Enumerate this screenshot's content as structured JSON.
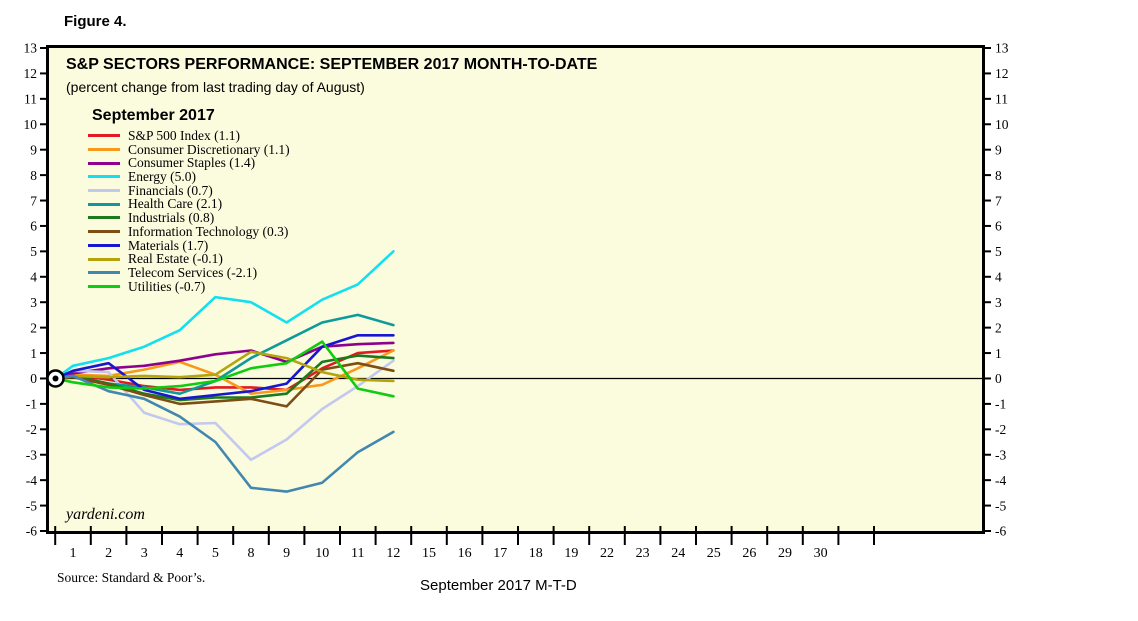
{
  "figure_label": "Figure 4.",
  "chart": {
    "title": "S&P SECTORS PERFORMANCE: SEPTEMBER 2017 MONTH-TO-DATE",
    "subtitle": "(percent change from last trading day of August)",
    "legend_header": "September 2017",
    "watermark": "yardeni.com",
    "source": "Source: Standard & Poor’s.",
    "xlabel": "September 2017 M-T-D"
  },
  "chart_data": {
    "type": "line",
    "title": "S&P SECTORS PERFORMANCE: SEPTEMBER 2017 MONTH-TO-DATE",
    "subtitle": "(percent change from last trading day of August)",
    "xlabel": "September 2017 M-T-D",
    "ylim": [
      -6,
      13
    ],
    "ytick_step": 1,
    "yaxis_sides": "both",
    "grid": false,
    "zero_line": true,
    "start_marker": "bullseye circle at value 0 on left axis (last trading day of August)",
    "legend_header": "September 2017",
    "legend_position": "upper-left inside plot",
    "xtick_labels": [
      "1",
      "2",
      "3",
      "4",
      "5",
      "8",
      "9",
      "10",
      "11",
      "12",
      "15",
      "16",
      "17",
      "18",
      "19",
      "22",
      "23",
      "24",
      "25",
      "26",
      "29",
      "30"
    ],
    "x_points": [
      "start(Aug last trading day)",
      "1",
      "2",
      "3",
      "4",
      "5",
      "8",
      "9",
      "10",
      "11",
      "12"
    ],
    "x_note": "All series begin at 0 on the left axis; plotted data runs through the day labeled 12. Remaining September days on the axis have no data yet.",
    "plot_bg_color": "#FBFBDE",
    "series": [
      {
        "name": "sp500",
        "label": "S&P 500 Index (1.1)",
        "final": 1.1,
        "color": "#E11B22",
        "values": [
          0,
          0.15,
          -0.05,
          -0.3,
          -0.45,
          -0.35,
          -0.35,
          -0.45,
          0.4,
          1.0,
          1.1
        ]
      },
      {
        "name": "consumer-discretionary",
        "label": "Consumer Discretionary (1.1)",
        "final": 1.1,
        "color": "#F8991D",
        "values": [
          0,
          0.15,
          0.1,
          0.35,
          0.65,
          0.15,
          -0.6,
          -0.45,
          -0.25,
          0.4,
          1.1
        ]
      },
      {
        "name": "consumer-staples",
        "label": "Consumer Staples (1.4)",
        "final": 1.4,
        "color": "#8E018E",
        "values": [
          0,
          0.2,
          0.4,
          0.5,
          0.7,
          0.95,
          1.1,
          0.65,
          1.25,
          1.35,
          1.4
        ]
      },
      {
        "name": "energy",
        "label": "Energy (5.0)",
        "final": 5.0,
        "color": "#12E0F0",
        "values": [
          0,
          0.5,
          0.8,
          1.25,
          1.9,
          3.2,
          3.0,
          2.2,
          3.1,
          3.7,
          5.0
        ]
      },
      {
        "name": "financials",
        "label": "Financials (0.7)",
        "final": 0.7,
        "color": "#C3C8F0",
        "values": [
          0,
          0.3,
          0.25,
          -1.35,
          -1.8,
          -1.75,
          -3.2,
          -2.4,
          -1.2,
          -0.3,
          0.7
        ]
      },
      {
        "name": "health-care",
        "label": "Health Care (2.1)",
        "final": 2.1,
        "color": "#0E9A9A",
        "values": [
          0,
          0.1,
          -0.2,
          -0.35,
          -0.6,
          -0.1,
          0.8,
          1.5,
          2.2,
          2.5,
          2.1
        ]
      },
      {
        "name": "industrials",
        "label": "Industrials (0.8)",
        "final": 0.8,
        "color": "#1B7A1B",
        "values": [
          0,
          0.1,
          -0.2,
          -0.6,
          -0.85,
          -0.75,
          -0.75,
          -0.6,
          0.65,
          0.9,
          0.8
        ]
      },
      {
        "name": "information-technology",
        "label": "Information Technology (0.3)",
        "final": 0.3,
        "color": "#7C4E13",
        "values": [
          0,
          0.05,
          -0.25,
          -0.65,
          -1.0,
          -0.9,
          -0.8,
          -1.1,
          0.35,
          0.6,
          0.3
        ]
      },
      {
        "name": "materials",
        "label": "Materials (1.7)",
        "final": 1.7,
        "color": "#1717D1",
        "values": [
          0,
          0.3,
          0.6,
          -0.45,
          -0.8,
          -0.65,
          -0.5,
          -0.2,
          1.25,
          1.7,
          1.7
        ]
      },
      {
        "name": "real-estate",
        "label": "Real Estate (-0.1)",
        "final": -0.1,
        "color": "#B5A40B",
        "values": [
          0,
          0.1,
          0.05,
          0.1,
          0.05,
          0.15,
          1.05,
          0.8,
          0.25,
          -0.05,
          -0.1
        ]
      },
      {
        "name": "telecom-services",
        "label": "Telecom Services (-2.1)",
        "final": -2.1,
        "color": "#4187B0",
        "values": [
          0,
          0.1,
          -0.5,
          -0.8,
          -1.5,
          -2.5,
          -4.3,
          -4.45,
          -4.1,
          -2.9,
          -2.1
        ]
      },
      {
        "name": "utilities",
        "label": "Utilities (-0.7)",
        "final": -0.7,
        "color": "#0ECC0E",
        "values": [
          0,
          -0.15,
          -0.35,
          -0.4,
          -0.3,
          -0.1,
          0.4,
          0.6,
          1.45,
          -0.4,
          -0.7
        ]
      }
    ]
  }
}
